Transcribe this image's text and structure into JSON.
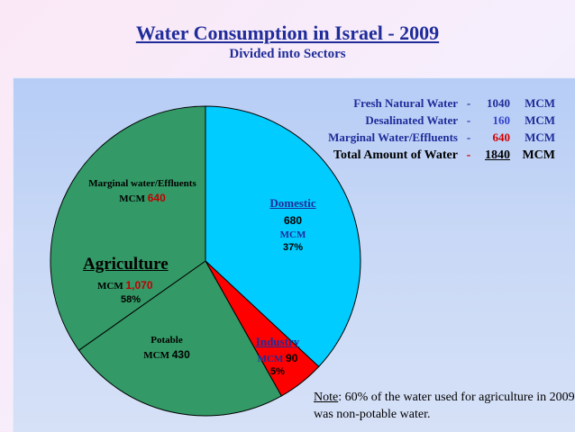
{
  "title": "Water Consumption in Israel - 2009",
  "subtitle": "Divided into Sectors",
  "legend": {
    "rows": [
      {
        "name": "Fresh Natural Water",
        "dash": "-",
        "value": "1040",
        "unit": "MCM"
      },
      {
        "name": "Desalinated Water",
        "dash": "-",
        "value": "160",
        "unit": "MCM"
      },
      {
        "name": "Marginal Water/Effluents",
        "dash": "-",
        "value": "640",
        "unit": "MCM"
      }
    ],
    "total": {
      "name": "Total Amount of Water",
      "dash": "-",
      "value": "1840",
      "unit": "MCM"
    }
  },
  "labels": {
    "domestic": {
      "name": "Domestic",
      "value": "680",
      "unit": "MCM",
      "pct": "37%"
    },
    "industry": {
      "name": "Industry",
      "unit": "MCM",
      "value": "90",
      "pct": "5%"
    },
    "agriculture": {
      "name": "Agriculture",
      "unit": "MCM",
      "value": "1,070",
      "pct": "58%"
    },
    "marginal": {
      "name": "Marginal water/Effluents",
      "unit": "MCM",
      "value": "640"
    },
    "potable": {
      "name": "Potable",
      "unit": "MCM",
      "value": "430"
    }
  },
  "note": {
    "label": "Note",
    "text": ": 60% of the water used for agriculture in 2009 was non-potable water."
  },
  "colors": {
    "domestic": "#00ccff",
    "industry": "#ff0000",
    "agriculture": "#339966",
    "title": "#1f2c9a"
  },
  "chart_data": {
    "type": "pie",
    "title": "Water Consumption in Israel - 2009",
    "subtitle": "Divided into Sectors",
    "unit": "MCM",
    "slices": [
      {
        "name": "Domestic",
        "value": 680,
        "percent": 37
      },
      {
        "name": "Industry",
        "value": 90,
        "percent": 5
      },
      {
        "name": "Agriculture - Potable",
        "value": 430
      },
      {
        "name": "Agriculture - Marginal water/Effluents",
        "value": 640
      }
    ],
    "agriculture_total": {
      "name": "Agriculture",
      "value": 1070,
      "percent": 58
    },
    "sources": [
      {
        "name": "Fresh Natural Water",
        "value": 1040
      },
      {
        "name": "Desalinated Water",
        "value": 160
      },
      {
        "name": "Marginal Water/Effluents",
        "value": 640
      }
    ],
    "total": 1840
  }
}
